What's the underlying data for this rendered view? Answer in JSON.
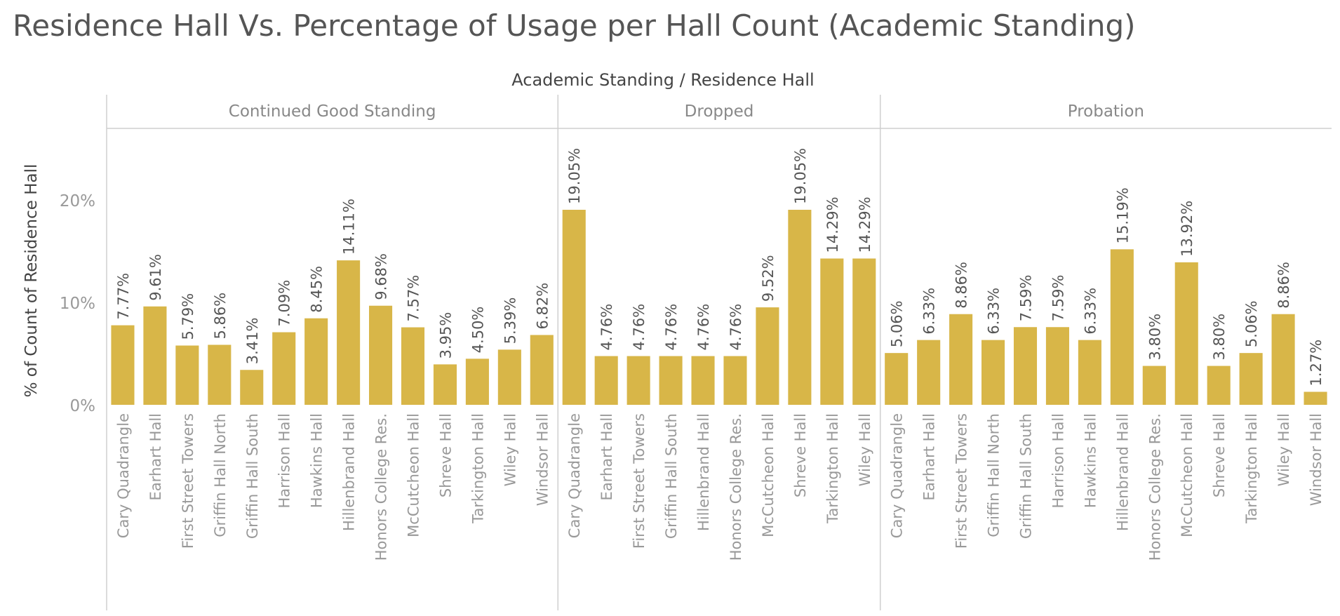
{
  "chart_data": {
    "type": "bar",
    "title": "Residence Hall Vs. Percentage of Usage per Hall Count (Academic Standing)",
    "column_header": "Academic Standing / Residence Hall",
    "ylabel": "% of Count of Residence Hall",
    "yticks": [
      "0%",
      "10%",
      "20%"
    ],
    "ytick_values": [
      0,
      10,
      20
    ],
    "ylim": [
      0,
      27
    ],
    "grid": false,
    "bar_color": "#d8b648",
    "groups": [
      {
        "name": "Continued Good Standing",
        "categories": [
          "Cary Quadrangle",
          "Earhart Hall",
          "First Street Towers",
          "Griffin Hall North",
          "Griffin Hall South",
          "Harrison Hall",
          "Hawkins Hall",
          "Hillenbrand Hall",
          "Honors College Res.",
          "McCutcheon Hall",
          "Shreve Hall",
          "Tarkington Hall",
          "Wiley Hall",
          "Windsor Hall"
        ],
        "values": [
          7.77,
          9.61,
          5.79,
          5.86,
          3.41,
          7.09,
          8.45,
          14.11,
          9.68,
          7.57,
          3.95,
          4.5,
          5.39,
          6.82
        ],
        "labels": [
          "7.77%",
          "9.61%",
          "5.79%",
          "5.86%",
          "3.41%",
          "7.09%",
          "8.45%",
          "14.11%",
          "9.68%",
          "7.57%",
          "3.95%",
          "4.50%",
          "5.39%",
          "6.82%"
        ]
      },
      {
        "name": "Dropped",
        "categories": [
          "Cary Quadrangle",
          "Earhart Hall",
          "First Street Towers",
          "Griffin Hall South",
          "Hillenbrand Hall",
          "Honors College Res.",
          "McCutcheon Hall",
          "Shreve Hall",
          "Tarkington Hall",
          "Wiley Hall"
        ],
        "values": [
          19.05,
          4.76,
          4.76,
          4.76,
          4.76,
          4.76,
          9.52,
          19.05,
          14.29,
          14.29
        ],
        "labels": [
          "19.05%",
          "4.76%",
          "4.76%",
          "4.76%",
          "4.76%",
          "4.76%",
          "9.52%",
          "19.05%",
          "14.29%",
          "14.29%"
        ]
      },
      {
        "name": "Probation",
        "categories": [
          "Cary Quadrangle",
          "Earhart Hall",
          "First Street Towers",
          "Griffin Hall North",
          "Griffin Hall South",
          "Harrison Hall",
          "Hawkins Hall",
          "Hillenbrand Hall",
          "Honors College Res.",
          "McCutcheon Hall",
          "Shreve Hall",
          "Tarkington Hall",
          "Wiley Hall",
          "Windsor Hall"
        ],
        "values": [
          5.06,
          6.33,
          8.86,
          6.33,
          7.59,
          7.59,
          6.33,
          15.19,
          3.8,
          13.92,
          3.8,
          5.06,
          8.86,
          1.27
        ],
        "labels": [
          "5.06%",
          "6.33%",
          "8.86%",
          "6.33%",
          "7.59%",
          "7.59%",
          "6.33%",
          "15.19%",
          "3.80%",
          "13.92%",
          "3.80%",
          "5.06%",
          "8.86%",
          "1.27%"
        ]
      }
    ]
  }
}
